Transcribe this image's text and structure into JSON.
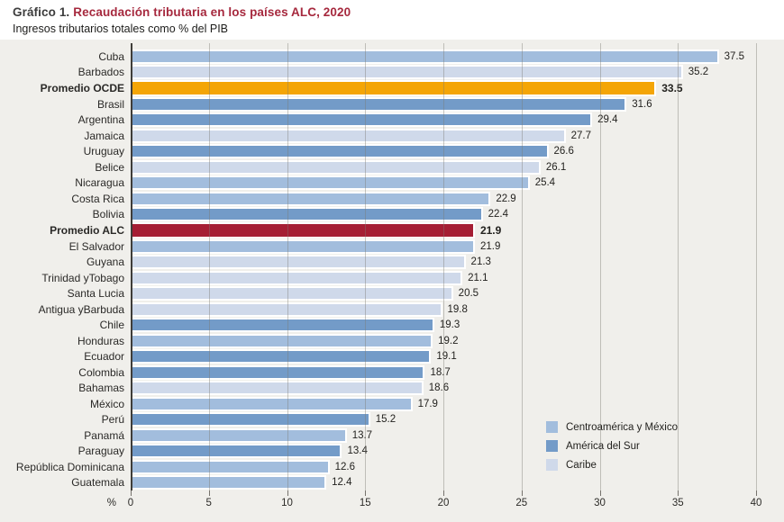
{
  "title": {
    "prefix": "Gráfico 1.",
    "main": "Recaudación tributaria en los países ALC, 2020"
  },
  "subtitle": "Ingresos tributarios totales como % del PIB",
  "colors": {
    "centroamerica": "#a2bddd",
    "sur": "#739bc8",
    "caribe": "#cfd9ea",
    "ocde": "#f4a506",
    "alc": "#a51e34",
    "plot_background": "#f0efeb",
    "title_accent": "#a6293e"
  },
  "chart_data": {
    "type": "bar",
    "orientation": "horizontal",
    "xlabel": "%",
    "xlim": [
      0,
      40
    ],
    "xticks": [
      0,
      5,
      10,
      15,
      20,
      25,
      30,
      35,
      40
    ],
    "grid": true,
    "legend_position": "bottom-right",
    "legend": [
      {
        "label": "Centroamérica y México",
        "group": "centroamerica"
      },
      {
        "label": "América del Sur",
        "group": "sur"
      },
      {
        "label": "Caribe",
        "group": "caribe"
      }
    ],
    "bars": [
      {
        "label": "Cuba",
        "value": 37.5,
        "group": "centroamerica",
        "emphasis": false
      },
      {
        "label": "Barbados",
        "value": 35.2,
        "group": "caribe",
        "emphasis": false
      },
      {
        "label": "Promedio OCDE",
        "value": 33.5,
        "group": "ocde",
        "emphasis": true
      },
      {
        "label": "Brasil",
        "value": 31.6,
        "group": "sur",
        "emphasis": false
      },
      {
        "label": "Argentina",
        "value": 29.4,
        "group": "sur",
        "emphasis": false
      },
      {
        "label": "Jamaica",
        "value": 27.7,
        "group": "caribe",
        "emphasis": false
      },
      {
        "label": "Uruguay",
        "value": 26.6,
        "group": "sur",
        "emphasis": false
      },
      {
        "label": "Belice",
        "value": 26.1,
        "group": "caribe",
        "emphasis": false
      },
      {
        "label": "Nicaragua",
        "value": 25.4,
        "group": "centroamerica",
        "emphasis": false
      },
      {
        "label": "Costa Rica",
        "value": 22.9,
        "group": "centroamerica",
        "emphasis": false
      },
      {
        "label": "Bolivia",
        "value": 22.4,
        "group": "sur",
        "emphasis": false
      },
      {
        "label": "Promedio ALC",
        "value": 21.9,
        "group": "alc",
        "emphasis": true
      },
      {
        "label": "El Salvador",
        "value": 21.9,
        "group": "centroamerica",
        "emphasis": false
      },
      {
        "label": "Guyana",
        "value": 21.3,
        "group": "caribe",
        "emphasis": false
      },
      {
        "label": "Trinidad yTobago",
        "value": 21.1,
        "group": "caribe",
        "emphasis": false
      },
      {
        "label": "Santa Lucia",
        "value": 20.5,
        "group": "caribe",
        "emphasis": false
      },
      {
        "label": "Antigua yBarbuda",
        "value": 19.8,
        "group": "caribe",
        "emphasis": false
      },
      {
        "label": "Chile",
        "value": 19.3,
        "group": "sur",
        "emphasis": false
      },
      {
        "label": "Honduras",
        "value": 19.2,
        "group": "centroamerica",
        "emphasis": false
      },
      {
        "label": "Ecuador",
        "value": 19.1,
        "group": "sur",
        "emphasis": false
      },
      {
        "label": "Colombia",
        "value": 18.7,
        "group": "sur",
        "emphasis": false
      },
      {
        "label": "Bahamas",
        "value": 18.6,
        "group": "caribe",
        "emphasis": false
      },
      {
        "label": "México",
        "value": 17.9,
        "group": "centroamerica",
        "emphasis": false
      },
      {
        "label": "Perú",
        "value": 15.2,
        "group": "sur",
        "emphasis": false
      },
      {
        "label": "Panamá",
        "value": 13.7,
        "group": "centroamerica",
        "emphasis": false
      },
      {
        "label": "Paraguay",
        "value": 13.4,
        "group": "sur",
        "emphasis": false
      },
      {
        "label": "República Dominicana",
        "value": 12.6,
        "group": "centroamerica",
        "emphasis": false
      },
      {
        "label": "Guatemala",
        "value": 12.4,
        "group": "centroamerica",
        "emphasis": false
      }
    ]
  }
}
